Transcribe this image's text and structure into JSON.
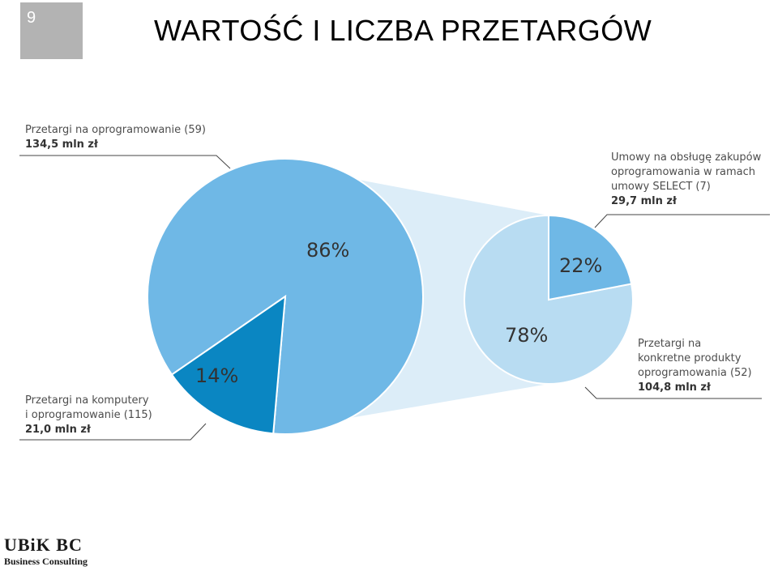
{
  "slide": {
    "number": "9",
    "title": "WARTOŚĆ I LICZBA PRZETARGÓW"
  },
  "logo": {
    "name": "UBiK BC",
    "subtitle": "Business Consulting"
  },
  "colors": {
    "main_large": "#6fb8e6",
    "main_small": "#0a86c2",
    "sub_large": "#b8dcf2",
    "sub_small": "#6fb8e6",
    "connector": "#dcedf8",
    "leader": "#444444"
  },
  "chart_data": [
    {
      "type": "pie",
      "name": "main",
      "slices": [
        {
          "label": "Przetargi na oprogramowanie (59)",
          "value_text": "134,5 mln zł",
          "value": 134.5,
          "percent": 86,
          "percent_label": "86%"
        },
        {
          "label": "Przetargi na komputery i oprogramowanie (115)",
          "label_line1": "Przetargi na komputery",
          "label_line2": "i oprogramowanie (115)",
          "value_text": "21,0 mln zł",
          "value": 21.0,
          "percent": 14,
          "percent_label": "14%"
        }
      ]
    },
    {
      "type": "pie",
      "name": "breakdown",
      "slices": [
        {
          "label": "Umowy na obsługę zakupów oprogramowania w ramach umowy SELECT (7)",
          "label_line1": "Umowy na obsługę zakupów",
          "label_line2": "oprogramowania w ramach",
          "label_line3": "umowy SELECT (7)",
          "value_text": "29,7 mln zł",
          "value": 29.7,
          "percent": 22,
          "percent_label": "22%"
        },
        {
          "label": "Przetargi na konkretne produkty oprogramowania (52)",
          "label_line1": "Przetargi na",
          "label_line2": "konkretne produkty",
          "label_line3": "oprogramowania (52)",
          "value_text": "104,8 mln zł",
          "value": 104.8,
          "percent": 78,
          "percent_label": "78%"
        }
      ]
    }
  ]
}
